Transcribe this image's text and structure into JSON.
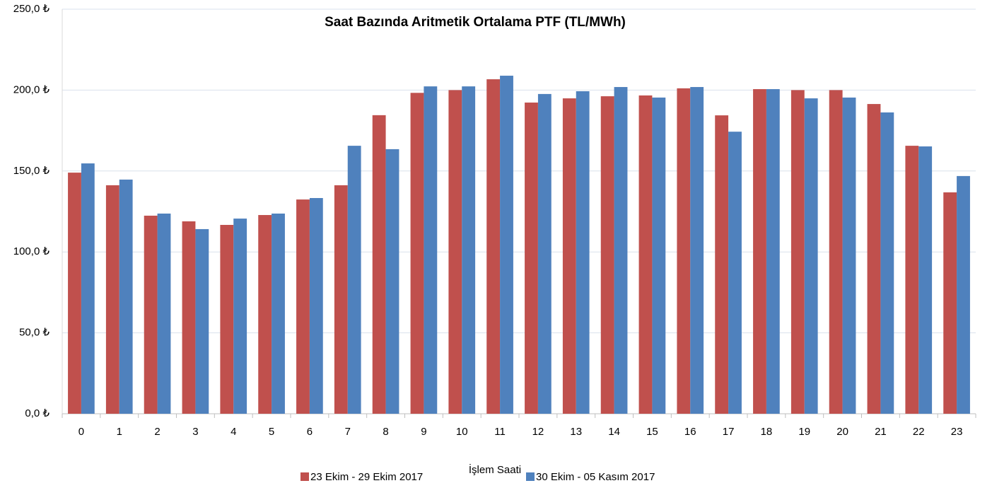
{
  "chart_data": {
    "type": "bar",
    "title": "Saat Bazında Aritmetik Ortalama PTF (TL/MWh)",
    "x_label": "İşlem Saati",
    "categories": [
      "0",
      "1",
      "2",
      "3",
      "4",
      "5",
      "6",
      "7",
      "8",
      "9",
      "10",
      "11",
      "12",
      "13",
      "14",
      "15",
      "16",
      "17",
      "18",
      "19",
      "20",
      "21",
      "22",
      "23"
    ],
    "series": [
      {
        "name": "23 Ekim - 29 Ekim 2017",
        "color": "#c0504d",
        "values": [
          149.0,
          141.2,
          122.4,
          118.9,
          116.7,
          122.8,
          132.4,
          141.2,
          184.5,
          198.3,
          200.0,
          206.7,
          192.3,
          194.9,
          196.2,
          196.7,
          201.1,
          184.4,
          200.6,
          200.0,
          200.0,
          191.4,
          165.6,
          136.8
        ]
      },
      {
        "name": "30 Ekim - 05 Kasım 2017",
        "color": "#4f81bd",
        "values": [
          154.7,
          144.7,
          123.7,
          114.1,
          120.6,
          123.7,
          133.3,
          165.6,
          163.5,
          202.3,
          202.3,
          208.9,
          197.6,
          199.3,
          201.9,
          195.4,
          201.9,
          174.3,
          200.6,
          194.9,
          195.4,
          186.2,
          165.2,
          146.9
        ]
      }
    ],
    "ylim": [
      0,
      250
    ],
    "yticks": [
      {
        "value": 0,
        "label": "0,0 ₺"
      },
      {
        "value": 50,
        "label": "50,0 ₺"
      },
      {
        "value": 100,
        "label": "100,0 ₺"
      },
      {
        "value": 150,
        "label": "150,0 ₺"
      },
      {
        "value": 200,
        "label": "200,0 ₺"
      },
      {
        "value": 250,
        "label": "250,0 ₺"
      }
    ],
    "grid": true,
    "legend": "bottom"
  }
}
